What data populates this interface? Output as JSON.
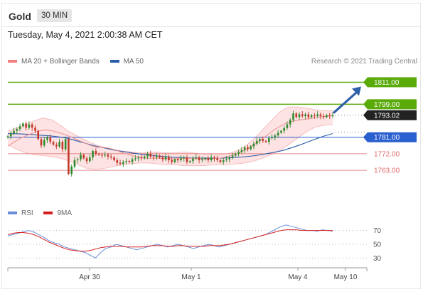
{
  "header": {
    "title": "Gold",
    "timeframe": "30 MIN"
  },
  "datetime": "Tuesday, May 4, 2021 2:00:38 AM CET",
  "legend": {
    "items": [
      {
        "label": "MA 20 + Bollinger Bands",
        "color": "#f08080"
      },
      {
        "label": "MA 50",
        "color": "#2a5caa"
      }
    ]
  },
  "credit": "Research © 2021 Trading Central",
  "rsi_legend": {
    "items": [
      {
        "label": "RSI",
        "color": "#6a8fd8"
      },
      {
        "label": "9MA",
        "color": "#d62020"
      }
    ]
  },
  "colors": {
    "up": "#2e8b2e",
    "down": "#c0392b",
    "resistance": "#5aaa0a",
    "support_blue": "#2a5fd0",
    "support_red": "#e06a6a",
    "band_fill": "#fcd9d9",
    "ma20": "#ef9a9a",
    "ma50": "#2a5caa",
    "arrow": "#2f5fa8",
    "last_price_bg": "#222222"
  },
  "chart_data": [
    {
      "type": "candlestick",
      "title": "Gold",
      "timeframe": "30 MIN",
      "ylim": [
        1751,
        1817
      ],
      "xtick_labels": [
        "Apr 30",
        "May 1",
        "May 4",
        "May 10"
      ],
      "levels": [
        {
          "value": 1811.0,
          "label": "1811.00",
          "style": "resistance-green"
        },
        {
          "value": 1799.0,
          "label": "1799.00",
          "style": "resistance-green"
        },
        {
          "value": 1793.02,
          "label": "1793.02",
          "style": "last-price"
        },
        {
          "value": 1781.0,
          "label": "1781.00",
          "style": "support-blue"
        },
        {
          "value": 1772.0,
          "label": "1772.00",
          "style": "support-red"
        },
        {
          "value": 1763.0,
          "label": "1763.00",
          "style": "support-red"
        }
      ],
      "forecast_arrow": {
        "from": 1793.0,
        "to": 1811.0
      },
      "close": [
        1781.5,
        1783.1,
        1784.5,
        1785.5,
        1787,
        1788.5,
        1786.2,
        1788.0,
        1786.2,
        1784.5,
        1780.0,
        1776.5,
        1779.5,
        1781.0,
        1778.5,
        1777.0,
        1776.0,
        1778.5,
        1774.5,
        1780.0,
        1761.0,
        1765.0,
        1768.5,
        1769.0,
        1771.5,
        1769.5,
        1768.0,
        1770.0,
        1773.5,
        1772.0,
        1771.5,
        1771.0,
        1771.5,
        1770.5,
        1770.0,
        1768.5,
        1767.0,
        1766.5,
        1767.5,
        1768.0,
        1767.5,
        1769.0,
        1769.5,
        1770.0,
        1769.5,
        1770.5,
        1772.0,
        1770.5,
        1770.0,
        1771.0,
        1770.0,
        1769.0,
        1770.5,
        1768.5,
        1767.5,
        1769.0,
        1768.5,
        1769.5,
        1770.0,
        1767.5,
        1768.0,
        1769.5,
        1770.0,
        1768.5,
        1769.0,
        1769.5,
        1768.5,
        1770.0,
        1769.5,
        1768.5,
        1767.5,
        1768.5,
        1769.0,
        1770.0,
        1771.0,
        1772.0,
        1773.0,
        1774.0,
        1775.5,
        1774.5,
        1776.0,
        1777.5,
        1779.0,
        1780.0,
        1779.0,
        1778.5,
        1780.5,
        1781.0,
        1782.0,
        1783.5,
        1784.5,
        1786.0,
        1788.0,
        1790.5,
        1794.0,
        1792.0,
        1793.5,
        1792.5,
        1793.5,
        1792.0,
        1793.0,
        1792.5,
        1793.5,
        1792.5,
        1792.0,
        1793.0,
        1792.5,
        1793.0
      ],
      "ma20": [
        1776.0,
        1778.5,
        1780.5,
        1782.0,
        1783.5,
        1784.5,
        1785.0,
        1784.5,
        1783.5,
        1782.5,
        1781.0,
        1779.5,
        1778.0,
        1776.5,
        1775.5,
        1775.5,
        1775.0,
        1774.0,
        1772.5,
        1771.5,
        1770.5,
        1770.0,
        1769.5,
        1769.5,
        1769.5,
        1769.3,
        1769.2,
        1769.3,
        1769.5,
        1769.5,
        1769.4,
        1769.2,
        1769.2,
        1769.6,
        1770.1,
        1770.9,
        1772.1,
        1773.6,
        1775.6,
        1777.8,
        1780.4,
        1782.9,
        1785.5,
        1787.5,
        1789.1,
        1790.0,
        1790.5,
        1791.0,
        1791.5,
        1792.0,
        1792.5,
        1792.8
      ],
      "ma50": [
        1783.0,
        1782.9,
        1782.7,
        1782.5,
        1782.1,
        1781.8,
        1781.3,
        1780.6,
        1779.4,
        1778.1,
        1776.8,
        1775.7,
        1774.8,
        1773.8,
        1773.1,
        1772.4,
        1771.8,
        1771.3,
        1770.8,
        1770.4,
        1770.1,
        1769.9,
        1769.7,
        1769.6,
        1769.6,
        1769.6,
        1769.7,
        1769.9,
        1770.2,
        1770.6,
        1771.2,
        1772.0,
        1772.8,
        1773.8,
        1775.2,
        1776.7,
        1778.4,
        1780.1,
        1781.7,
        1783.0
      ],
      "bollinger_upper": [
        1784.5,
        1786.0,
        1788.0,
        1790.0,
        1791.5,
        1790.5,
        1787.5,
        1784.0,
        1781.5,
        1779.0,
        1777.0,
        1775.5,
        1774.5,
        1773.5,
        1773.0,
        1772.5,
        1772.5,
        1773.0,
        1772.5,
        1772.5,
        1773.0,
        1772.5,
        1772.0,
        1771.5,
        1771.5,
        1772.0,
        1773.5,
        1776.0,
        1780.0,
        1785.0,
        1790.0,
        1795.0,
        1797.5,
        1797.5,
        1797.0,
        1796.0,
        1795.5,
        1795.5
      ],
      "bollinger_lower": [
        1777.0,
        1774.5,
        1772.5,
        1771.5,
        1771.0,
        1770.5,
        1769.5,
        1768.0,
        1766.0,
        1764.0,
        1763.5,
        1764.0,
        1765.0,
        1766.0,
        1766.5,
        1767.0,
        1767.0,
        1766.5,
        1766.0,
        1766.0,
        1765.5,
        1765.5,
        1765.5,
        1765.8,
        1766.0,
        1766.0,
        1766.5,
        1767.0,
        1768.0,
        1769.5,
        1771.5,
        1774.0,
        1777.0,
        1780.5,
        1784.0,
        1786.5,
        1787.5,
        1788.0
      ]
    },
    {
      "type": "line",
      "title": "RSI",
      "yticks": [
        70,
        50,
        30
      ],
      "ylim": [
        20,
        82
      ],
      "series": [
        {
          "name": "RSI",
          "values": [
            62,
            64,
            66,
            68,
            70,
            68,
            64,
            60,
            55,
            52,
            50,
            46,
            44,
            42,
            40,
            38,
            34,
            30,
            38,
            44,
            46,
            50,
            48,
            46,
            44,
            42,
            44,
            46,
            48,
            50,
            48,
            46,
            48,
            50,
            48,
            46,
            44,
            46,
            48,
            50,
            48,
            46,
            48,
            50,
            52,
            54,
            56,
            58,
            60,
            62,
            64,
            68,
            72,
            76,
            78,
            76,
            74,
            72,
            70,
            70,
            69,
            71,
            70,
            69
          ]
        },
        {
          "name": "9MA",
          "values": [
            64,
            66,
            67,
            67,
            66,
            64,
            61,
            57,
            53,
            50,
            47,
            44,
            42,
            41,
            40,
            40,
            41,
            43,
            45,
            46,
            47,
            47,
            47,
            46,
            46,
            46,
            46,
            47,
            48,
            48,
            48,
            47,
            47,
            48,
            48,
            47,
            47,
            47,
            47,
            48,
            48,
            48,
            49,
            50,
            52,
            54,
            56,
            58,
            60,
            62,
            64,
            66,
            68,
            70,
            71,
            71,
            71,
            70,
            70,
            70,
            70,
            70,
            70,
            70
          ]
        }
      ]
    }
  ]
}
